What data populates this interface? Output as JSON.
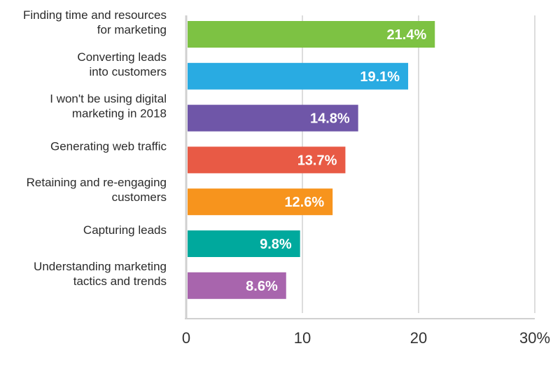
{
  "chart_data": {
    "type": "bar",
    "orientation": "horizontal",
    "categories": [
      [
        "Finding time and resources",
        "for marketing"
      ],
      [
        "Converting leads",
        "into customers"
      ],
      [
        "I won't be using digital",
        "marketing in 2018"
      ],
      [
        "Generating web traffic"
      ],
      [
        "Retaining and re-engaging",
        "customers"
      ],
      [
        "Capturing leads"
      ],
      [
        "Understanding marketing",
        "tactics and trends"
      ]
    ],
    "values": [
      21.4,
      19.1,
      14.8,
      13.7,
      12.6,
      9.8,
      8.6
    ],
    "value_labels": [
      "21.4%",
      "19.1%",
      "14.8%",
      "13.7%",
      "12.6%",
      "9.8%",
      "8.6%"
    ],
    "colors": [
      "#7dc243",
      "#29abe2",
      "#6f56a8",
      "#e85a45",
      "#f7941d",
      "#00a99d",
      "#a865ad"
    ],
    "xlim": [
      0,
      30
    ],
    "ticks": [
      0,
      10,
      20,
      30
    ],
    "tick_labels": [
      "0",
      "10",
      "20",
      "30%"
    ],
    "grid": true,
    "title": "",
    "xlabel": "",
    "ylabel": ""
  }
}
